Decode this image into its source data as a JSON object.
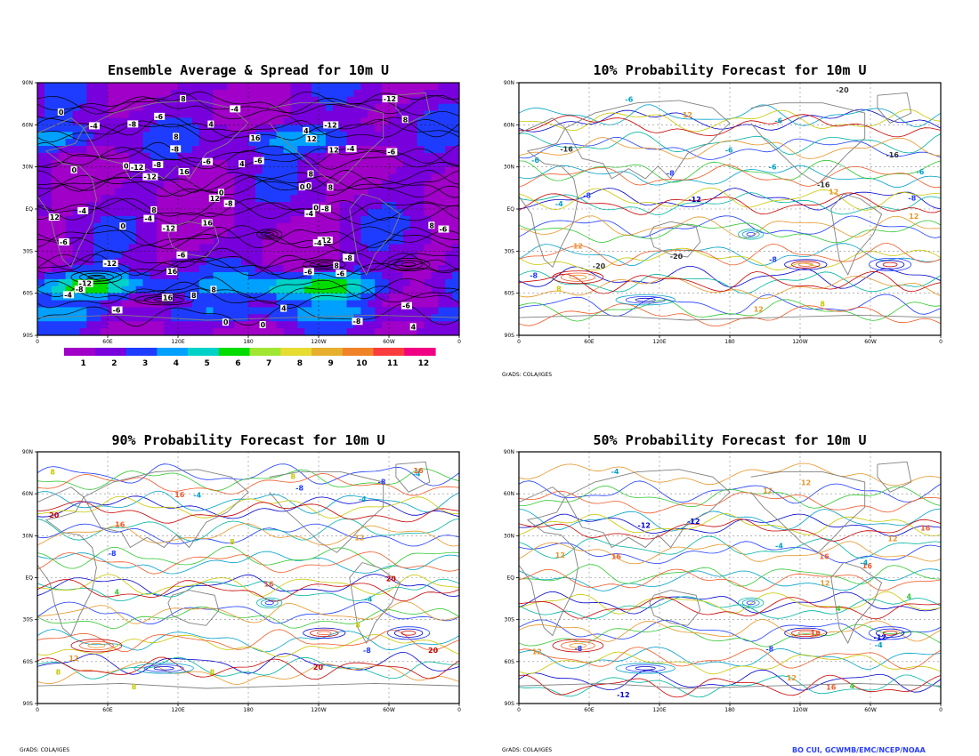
{
  "panels": [
    {
      "id": "ensemble",
      "title": "Ensemble Average & Spread for 10m U",
      "credit": "",
      "lat_ticks": [
        "90N",
        "60N",
        "30N",
        "EQ",
        "30S",
        "60S",
        "90S"
      ],
      "lon_ticks": [
        "0",
        "60E",
        "120E",
        "180",
        "120W",
        "60W",
        "0"
      ],
      "contour_labels": [
        "0",
        "4",
        "-4",
        "-8",
        "8",
        "12",
        "-12",
        "16",
        "-6"
      ]
    },
    {
      "id": "p10",
      "title": "10% Probability Forecast for 10m U",
      "credit": "GrADS: COLA/IGES",
      "lat_ticks": [
        "90N",
        "60N",
        "30N",
        "EQ",
        "30S",
        "60S",
        "90S"
      ],
      "lon_ticks": [
        "0",
        "60E",
        "120E",
        "180",
        "120W",
        "60W",
        "0"
      ],
      "contour_labels": [
        "-4",
        "-8",
        "-12",
        "-16",
        "8",
        "12",
        "-20",
        "-6"
      ]
    },
    {
      "id": "p90",
      "title": "90% Probability Forecast for 10m U",
      "credit": "GrADS: COLA/IGES",
      "lat_ticks": [
        "90N",
        "60N",
        "30N",
        "EQ",
        "30S",
        "60S",
        "90S"
      ],
      "lon_ticks": [
        "0",
        "60E",
        "120E",
        "180",
        "120W",
        "60W",
        "0"
      ],
      "contour_labels": [
        "4",
        "8",
        "-4",
        "-8",
        "12",
        "16",
        "20"
      ]
    },
    {
      "id": "p50",
      "title": "50% Probability Forecast for 10m U",
      "credit": "GrADS: COLA/IGES",
      "lat_ticks": [
        "90N",
        "60N",
        "30N",
        "EQ",
        "30S",
        "60S",
        "90S"
      ],
      "lon_ticks": [
        "0",
        "60E",
        "120E",
        "180",
        "120W",
        "60W",
        "0"
      ],
      "contour_labels": [
        "4",
        "-4",
        "8",
        "12",
        "-8",
        "-12",
        "16"
      ]
    }
  ],
  "colorbar": {
    "labels": [
      "1",
      "2",
      "3",
      "4",
      "5",
      "6",
      "7",
      "8",
      "9",
      "10",
      "11",
      "12"
    ],
    "colors": [
      "#a000c8",
      "#7800dc",
      "#1e3cff",
      "#00a0ff",
      "#00d2c8",
      "#00dc00",
      "#a0e632",
      "#e6dc32",
      "#e6af2d",
      "#f08228",
      "#fa3c3c",
      "#f00082"
    ]
  },
  "author": "BO CUI, GCWMB/EMC/NCEP/NOAA",
  "chart_data": [
    {
      "type": "heatmap",
      "title": "Ensemble Average & Spread for 10m U",
      "xlabel": "",
      "ylabel": "",
      "x_ticks": [
        "0",
        "60E",
        "120E",
        "180",
        "120W",
        "60W",
        "0"
      ],
      "y_ticks": [
        "90N",
        "60N",
        "30N",
        "EQ",
        "30S",
        "60S",
        "90S"
      ],
      "x_range": [
        0,
        360
      ],
      "y_range": [
        -90,
        90
      ],
      "colorbar_levels": [
        1,
        2,
        3,
        4,
        5,
        6,
        7,
        8,
        9,
        10,
        11,
        12
      ],
      "grid": true
    },
    {
      "type": "line",
      "title": "10% Probability Forecast for 10m U",
      "x_ticks": [
        "0",
        "60E",
        "120E",
        "180",
        "120W",
        "60W",
        "0"
      ],
      "y_ticks": [
        "90N",
        "60N",
        "30N",
        "EQ",
        "30S",
        "60S",
        "90S"
      ],
      "x_range": [
        0,
        360
      ],
      "y_range": [
        -90,
        90
      ],
      "grid": true
    },
    {
      "type": "line",
      "title": "90% Probability Forecast for 10m U",
      "x_ticks": [
        "0",
        "60E",
        "120E",
        "180",
        "120W",
        "60W",
        "0"
      ],
      "y_ticks": [
        "90N",
        "60N",
        "30N",
        "EQ",
        "30S",
        "60S",
        "90S"
      ],
      "x_range": [
        0,
        360
      ],
      "y_range": [
        -90,
        90
      ],
      "grid": true
    },
    {
      "type": "line",
      "title": "50% Probability Forecast for 10m U",
      "x_ticks": [
        "0",
        "60E",
        "120E",
        "180",
        "120W",
        "60W",
        "0"
      ],
      "y_ticks": [
        "90N",
        "60N",
        "30N",
        "EQ",
        "30S",
        "60S",
        "90S"
      ],
      "x_range": [
        0,
        360
      ],
      "y_range": [
        -90,
        90
      ],
      "grid": true
    }
  ]
}
